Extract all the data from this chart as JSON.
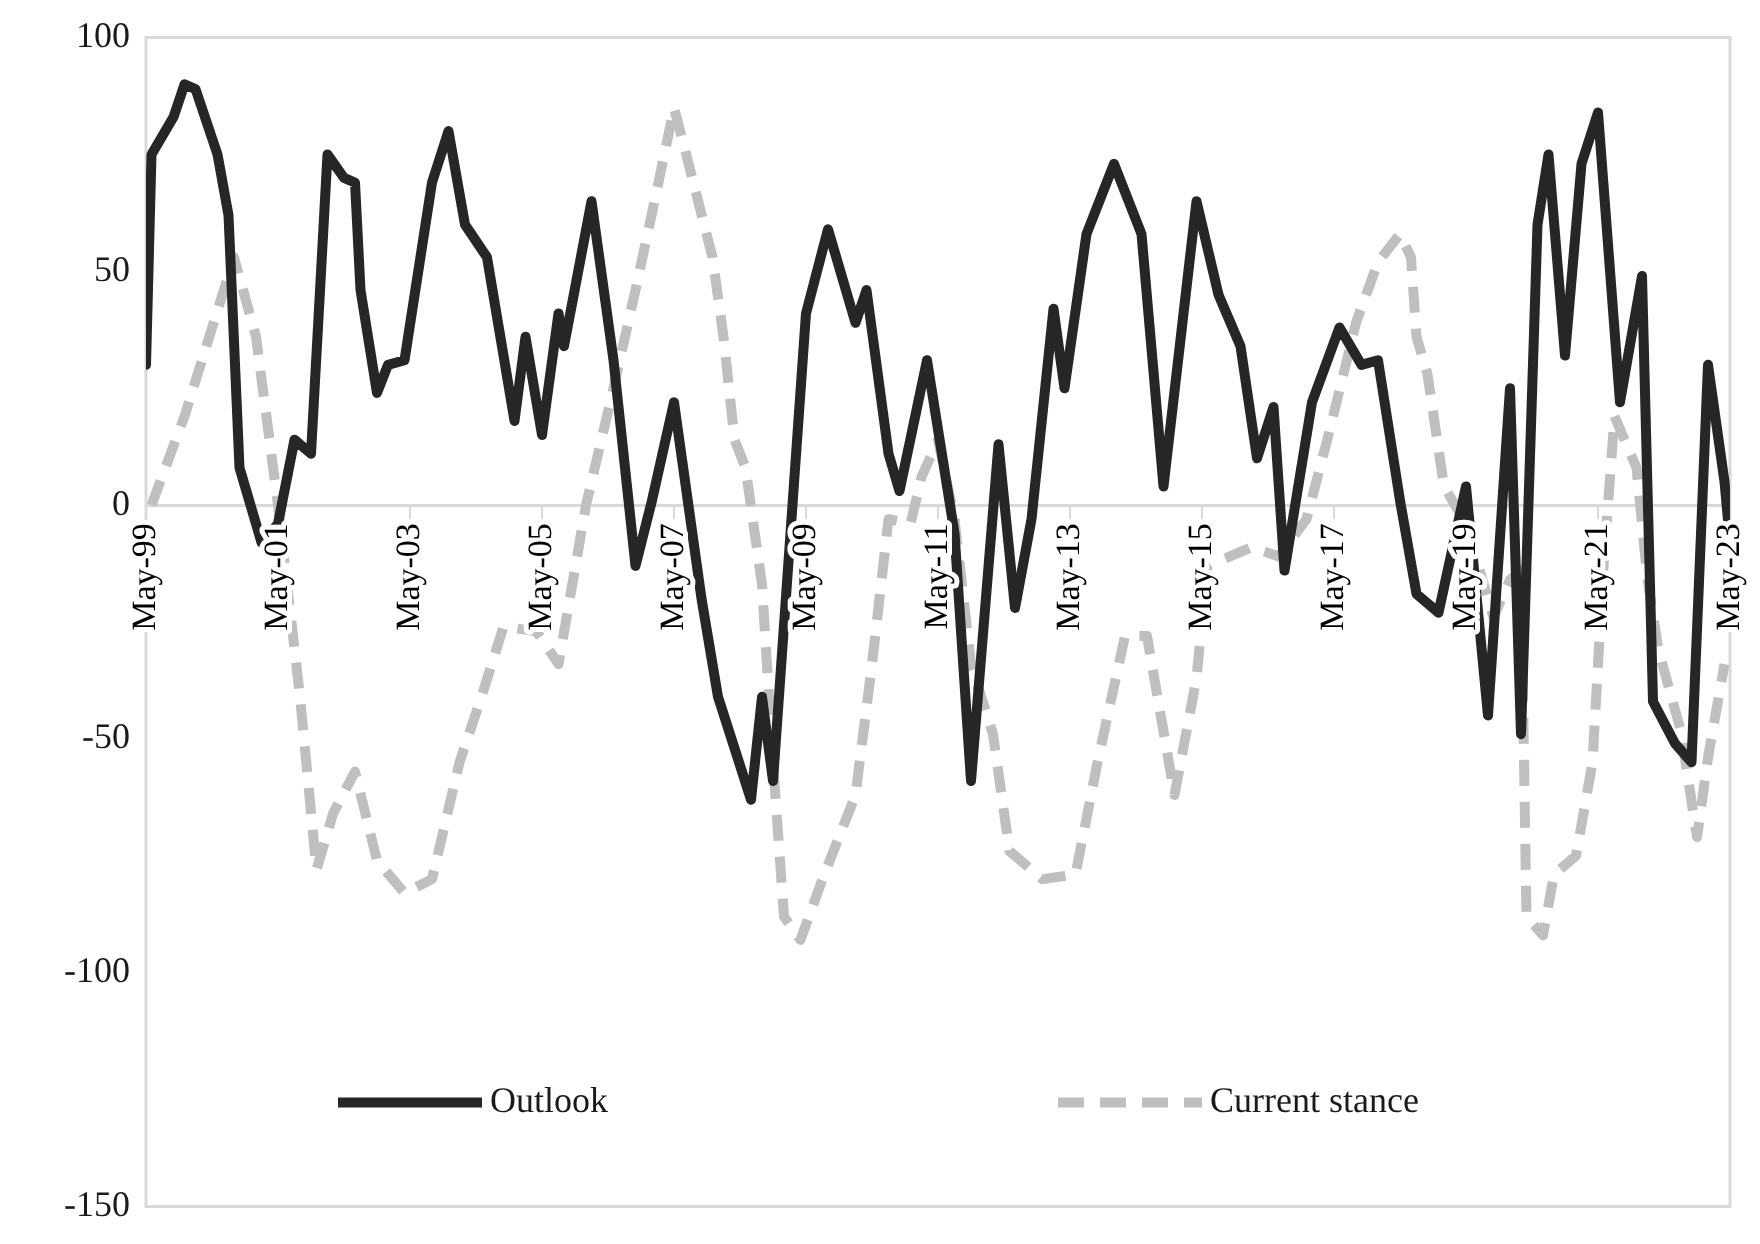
{
  "chart_data": {
    "type": "line",
    "xlim": [
      "1999-05",
      "2023-05"
    ],
    "xticks": [
      {
        "value": "1999-05",
        "label": "May-99"
      },
      {
        "value": "2001-05",
        "label": "May-01"
      },
      {
        "value": "2003-05",
        "label": "May-03"
      },
      {
        "value": "2005-05",
        "label": "May-05"
      },
      {
        "value": "2007-05",
        "label": "May-07"
      },
      {
        "value": "2009-05",
        "label": "May-09"
      },
      {
        "value": "2011-05",
        "label": "May-11"
      },
      {
        "value": "2013-05",
        "label": "May-13"
      },
      {
        "value": "2015-05",
        "label": "May-15"
      },
      {
        "value": "2017-05",
        "label": "May-17"
      },
      {
        "value": "2019-05",
        "label": "May-19"
      },
      {
        "value": "2021-05",
        "label": "May-21"
      },
      {
        "value": "2023-05",
        "label": "May-23"
      }
    ],
    "ylim": [
      -150,
      100
    ],
    "yticks": [
      -150,
      -100,
      -50,
      0,
      50,
      100
    ],
    "grid": false,
    "legend": "bottom",
    "series": [
      {
        "name": "Outlook",
        "color": "#262626",
        "line_style": "solid",
        "x": [
          "1999-05",
          "1999-06",
          "1999-10",
          "1999-12",
          "2000-02",
          "2000-04",
          "2000-06",
          "2000-08",
          "2000-10",
          "2001-02",
          "2001-05",
          "2001-08",
          "2001-11",
          "2002-02",
          "2002-05",
          "2002-07",
          "2002-08",
          "2002-11",
          "2003-01",
          "2003-04",
          "2003-09",
          "2003-12",
          "2004-03",
          "2004-07",
          "2004-12",
          "2005-02",
          "2005-05",
          "2005-08",
          "2005-09",
          "2006-02",
          "2006-06",
          "2006-10",
          "2007-01",
          "2007-05",
          "2007-10",
          "2008-01",
          "2008-07",
          "2008-09",
          "2008-11",
          "2009-05",
          "2009-09",
          "2010-02",
          "2010-04",
          "2010-08",
          "2010-10",
          "2011-03",
          "2011-08",
          "2011-11",
          "2012-04",
          "2012-07",
          "2012-10",
          "2013-02",
          "2013-04",
          "2013-08",
          "2014-01",
          "2014-06",
          "2014-10",
          "2015-04",
          "2015-08",
          "2015-12",
          "2016-03",
          "2016-06",
          "2016-08",
          "2017-01",
          "2017-06",
          "2017-10",
          "2018-01",
          "2018-05",
          "2018-08",
          "2018-12",
          "2019-05",
          "2019-09",
          "2020-01",
          "2020-03",
          "2020-06",
          "2020-08",
          "2020-11",
          "2021-02",
          "2021-05",
          "2021-09",
          "2022-01",
          "2022-03",
          "2022-07",
          "2022-10",
          "2023-01",
          "2023-04",
          "2023-05"
        ],
        "values": [
          30,
          75,
          83,
          90,
          89,
          82,
          75,
          62,
          8,
          -8,
          -4,
          14,
          11,
          75,
          70,
          69,
          46,
          24,
          30,
          31,
          69,
          80,
          60,
          53,
          18,
          36,
          15,
          41,
          34,
          65,
          31,
          -13,
          1,
          22,
          -20,
          -41,
          -63,
          -41,
          -59,
          41,
          59,
          39,
          46,
          11,
          3,
          31,
          -6,
          -59,
          13,
          -22,
          -3,
          42,
          25,
          58,
          73,
          58,
          4,
          65,
          45,
          34,
          10,
          21,
          -14,
          22,
          38,
          30,
          31,
          1,
          -19,
          -23,
          4,
          -45,
          25,
          -49,
          60,
          75,
          32,
          73,
          84,
          22,
          49,
          -42,
          -51,
          -55,
          30,
          5,
          -8
        ]
      },
      {
        "name": "Current stance",
        "color": "#bfbfbf",
        "line_style": "dashed",
        "x": [
          "1999-06",
          "1999-12",
          "2000-09",
          "2001-01",
          "2001-05",
          "2001-09",
          "2001-12",
          "2002-03",
          "2002-07",
          "2002-11",
          "2003-04",
          "2003-09",
          "2004-02",
          "2004-06",
          "2004-10",
          "2005-04",
          "2005-08",
          "2006-01",
          "2006-06",
          "2006-10",
          "2007-02",
          "2007-05",
          "2007-07",
          "2007-12",
          "2008-02",
          "2008-04",
          "2008-06",
          "2008-09",
          "2008-11",
          "2009-01",
          "2009-04",
          "2009-08",
          "2010-02",
          "2010-05",
          "2010-08",
          "2010-12",
          "2011-02",
          "2011-05",
          "2011-08",
          "2011-11",
          "2012-03",
          "2012-06",
          "2012-12",
          "2013-06",
          "2013-10",
          "2014-03",
          "2014-07",
          "2014-12",
          "2015-04",
          "2015-06",
          "2016-02",
          "2016-07",
          "2016-12",
          "2017-04",
          "2017-09",
          "2018-01",
          "2018-05",
          "2018-07",
          "2018-08",
          "2018-10",
          "2019-01",
          "2019-05",
          "2019-10",
          "2020-01",
          "2020-03",
          "2020-04",
          "2020-07",
          "2020-09",
          "2021-01",
          "2021-04",
          "2021-06",
          "2021-08",
          "2021-12",
          "2022-02",
          "2022-04",
          "2022-08",
          "2022-11",
          "2023-01",
          "2023-04"
        ],
        "values": [
          0,
          19,
          53,
          36,
          0,
          -41,
          -78,
          -66,
          -57,
          -76,
          -83,
          -80,
          -55,
          -41,
          -26,
          -27,
          -34,
          0,
          25,
          46,
          68,
          85,
          76,
          53,
          36,
          14,
          8,
          -17,
          -55,
          -88,
          -93,
          -80,
          -62,
          -34,
          -3,
          -4,
          6,
          14,
          -3,
          -34,
          -49,
          -74,
          -80,
          -79,
          -55,
          -28,
          -28,
          -62,
          -37,
          -13,
          -9,
          -11,
          -3,
          15,
          39,
          52,
          58,
          53,
          36,
          28,
          4,
          -4,
          -24,
          -16,
          -14,
          -88,
          -92,
          -79,
          -75,
          -55,
          -13,
          19,
          8,
          -16,
          -31,
          -48,
          -71,
          -54,
          -34
        ]
      }
    ]
  }
}
